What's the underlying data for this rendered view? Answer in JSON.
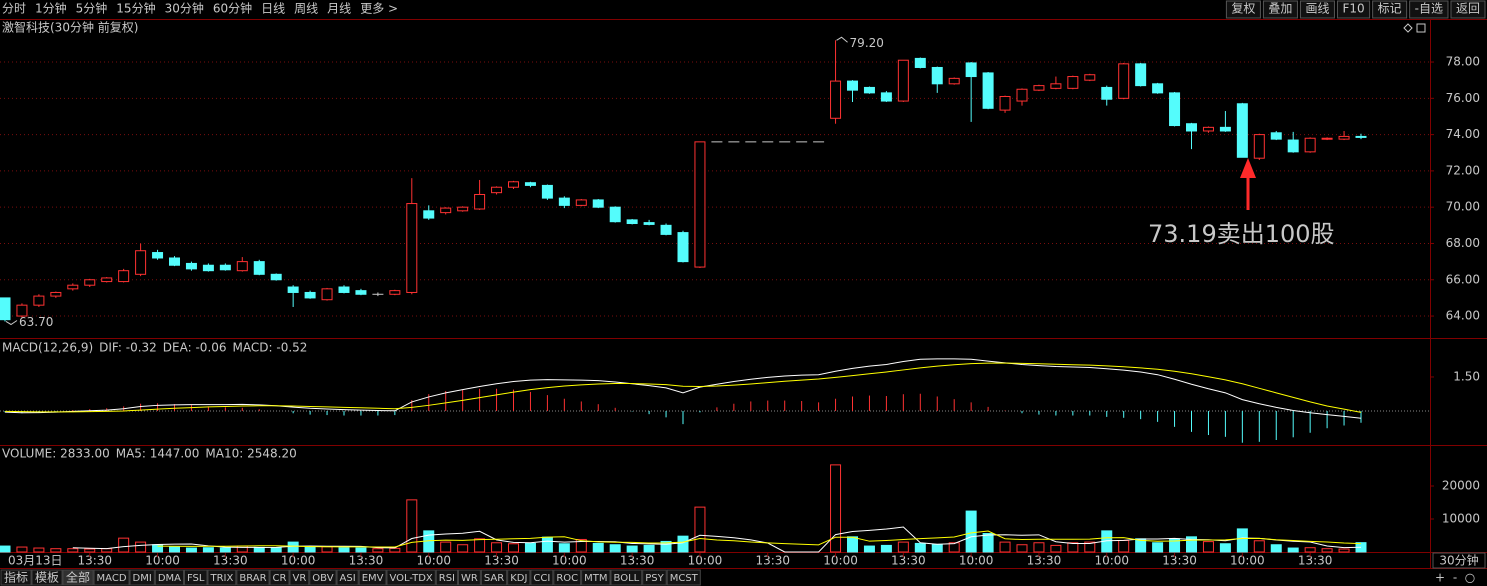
{
  "toolbar": {
    "periods": [
      {
        "label": "分时"
      },
      {
        "label": "1分钟"
      },
      {
        "label": "5分钟"
      },
      {
        "label": "15分钟"
      },
      {
        "label": "30分钟",
        "active": true
      },
      {
        "label": "60分钟"
      },
      {
        "label": "日线"
      },
      {
        "label": "周线"
      },
      {
        "label": "月线"
      },
      {
        "label": "更多 >"
      }
    ],
    "buttons": [
      "复权",
      "叠加",
      "画线",
      "F10",
      "标记",
      "-自选",
      "返回"
    ]
  },
  "chart_data": [
    {
      "type": "candlestick",
      "title": "激智科技(30分钟 前复权)",
      "categories": [
        "03月13日",
        null,
        null,
        null,
        null,
        "13:30",
        null,
        null,
        null,
        "10:00",
        null,
        null,
        null,
        "13:30",
        null,
        null,
        null,
        "10:00",
        null,
        null,
        null,
        "13:30",
        null,
        null,
        null,
        "10:00",
        null,
        null,
        null,
        "13:30",
        null,
        null,
        null,
        "10:00",
        null,
        null,
        null,
        "13:30",
        null,
        null,
        null,
        "10:00",
        null,
        null,
        null,
        "13:30",
        null,
        null,
        null,
        "10:00",
        null,
        null,
        null,
        "13:30",
        null,
        null,
        null,
        "10:00",
        null,
        null,
        null,
        "13:30",
        null,
        null,
        null,
        "10:00",
        null,
        null,
        null,
        "13:30",
        null,
        null,
        null,
        "10:00",
        null,
        null,
        null,
        "13:30",
        null,
        null,
        null
      ],
      "open": [
        65.0,
        64.0,
        64.6,
        65.1,
        65.5,
        65.7,
        65.9,
        65.9,
        66.3,
        67.5,
        67.2,
        66.9,
        66.8,
        66.8,
        66.5,
        67.0,
        66.3,
        65.6,
        65.3,
        64.9,
        65.6,
        65.4,
        65.2,
        65.2,
        65.3,
        69.8,
        69.7,
        69.8,
        69.9,
        70.8,
        71.1,
        71.35,
        71.2,
        70.5,
        70.1,
        70.4,
        70.0,
        69.3,
        69.15,
        69.0,
        68.6,
        66.7,
        73.6,
        73.6,
        73.6,
        73.6,
        73.6,
        73.6,
        73.6,
        74.9,
        76.95,
        76.6,
        76.3,
        75.85,
        78.2,
        77.7,
        76.8,
        77.95,
        77.4,
        75.35,
        75.85,
        76.45,
        76.55,
        76.55,
        77.0,
        76.6,
        76.0,
        77.9,
        76.8,
        76.3,
        74.6,
        74.2,
        74.4,
        75.7,
        72.7,
        74.1,
        73.7,
        73.05,
        73.75,
        73.75,
        73.9
      ],
      "high": [
        65.0,
        64.7,
        65.2,
        65.35,
        65.8,
        66.05,
        66.15,
        66.6,
        68.0,
        67.65,
        67.3,
        67.0,
        66.9,
        66.9,
        67.25,
        67.1,
        66.35,
        65.7,
        65.4,
        65.55,
        65.7,
        65.5,
        65.3,
        65.45,
        71.6,
        70.1,
        70.0,
        70.05,
        71.5,
        71.15,
        71.45,
        71.4,
        71.25,
        70.6,
        70.45,
        70.45,
        70.05,
        69.35,
        69.3,
        69.1,
        68.7,
        73.6,
        73.6,
        73.6,
        73.6,
        73.6,
        73.6,
        73.6,
        73.6,
        79.2,
        77.0,
        76.65,
        76.4,
        78.1,
        78.25,
        77.75,
        77.15,
        78.0,
        77.45,
        76.15,
        76.55,
        76.75,
        77.2,
        77.25,
        77.35,
        76.7,
        77.95,
        77.95,
        76.85,
        76.35,
        74.65,
        74.45,
        75.3,
        75.75,
        74.05,
        74.2,
        74.15,
        73.85,
        73.85,
        74.2,
        74.05
      ],
      "low": [
        63.7,
        63.9,
        64.5,
        65.0,
        65.4,
        65.6,
        65.85,
        65.85,
        66.2,
        67.1,
        66.75,
        66.5,
        66.45,
        66.5,
        66.45,
        66.25,
        65.95,
        64.5,
        64.95,
        64.85,
        65.25,
        65.15,
        65.1,
        65.15,
        65.2,
        69.3,
        69.6,
        69.75,
        69.85,
        70.7,
        71.0,
        71.1,
        70.4,
        69.95,
        70.05,
        69.95,
        69.15,
        69.05,
        69.0,
        68.45,
        66.95,
        66.65,
        73.6,
        73.6,
        73.6,
        73.6,
        73.6,
        73.6,
        73.6,
        74.6,
        75.8,
        76.25,
        75.8,
        75.8,
        77.65,
        76.3,
        76.75,
        74.7,
        75.4,
        75.2,
        75.6,
        76.4,
        76.5,
        76.5,
        76.95,
        75.6,
        75.95,
        76.65,
        76.25,
        74.45,
        73.2,
        74.1,
        74.15,
        72.75,
        72.6,
        73.7,
        73.0,
        73.0,
        73.7,
        73.7,
        73.75
      ],
      "close": [
        63.8,
        64.6,
        65.1,
        65.3,
        65.7,
        66.0,
        66.1,
        66.5,
        67.6,
        67.2,
        66.8,
        66.6,
        66.5,
        66.55,
        67.0,
        66.3,
        66.0,
        65.3,
        65.0,
        65.5,
        65.3,
        65.2,
        65.2,
        65.4,
        70.2,
        69.4,
        69.95,
        70.0,
        70.7,
        71.1,
        71.4,
        71.2,
        70.5,
        70.1,
        70.4,
        70.0,
        69.2,
        69.1,
        69.05,
        68.5,
        67.0,
        73.6,
        73.6,
        73.6,
        73.6,
        73.6,
        73.6,
        73.6,
        73.6,
        76.95,
        76.45,
        76.3,
        75.85,
        78.1,
        77.7,
        76.8,
        77.1,
        77.2,
        75.45,
        76.1,
        76.5,
        76.7,
        76.8,
        77.2,
        77.3,
        75.95,
        77.9,
        76.7,
        76.3,
        74.5,
        74.2,
        74.4,
        74.2,
        72.75,
        74.0,
        73.75,
        73.05,
        73.8,
        73.8,
        73.9,
        73.88
      ],
      "up_color": "#ff3232",
      "down_color": "#54fcfc",
      "flat_color": "#c8c8c8",
      "ylim": [
        62.79,
        79.49
      ],
      "yticks": [
        {
          "value": 64,
          "label": "64.00"
        },
        {
          "value": 66,
          "label": "66.00"
        },
        {
          "value": 68,
          "label": "68.00"
        },
        {
          "value": 70,
          "label": "70.00"
        },
        {
          "value": 72,
          "label": "72.00"
        },
        {
          "value": 74,
          "label": "74.00"
        },
        {
          "value": 76,
          "label": "76.00"
        },
        {
          "value": 78,
          "label": "78.00"
        }
      ],
      "grid": true,
      "annotations": {
        "high_label": "79.20",
        "low_label": "63.70",
        "note": "73.19卖出100股",
        "note_color": "#ffff00",
        "arrow_color": "#ff2a2a"
      }
    },
    {
      "type": "macd",
      "label": "MACD(12,26,9)",
      "series": [
        {
          "name": "DIF: -0.32",
          "color": "#ffffff",
          "values": [
            -0.05,
            -0.08,
            -0.07,
            -0.05,
            -0.02,
            0.01,
            0.04,
            0.1,
            0.2,
            0.25,
            0.27,
            0.28,
            0.28,
            0.28,
            0.29,
            0.27,
            0.23,
            0.17,
            0.12,
            0.09,
            0.06,
            0.04,
            0.02,
            0.01,
            0.4,
            0.62,
            0.8,
            0.94,
            1.08,
            1.2,
            1.3,
            1.36,
            1.38,
            1.37,
            1.36,
            1.34,
            1.28,
            1.2,
            1.12,
            1.02,
            0.8,
            1.05,
            1.18,
            1.3,
            1.4,
            1.48,
            1.54,
            1.58,
            1.6,
            1.75,
            1.88,
            1.98,
            2.05,
            2.18,
            2.28,
            2.3,
            2.3,
            2.28,
            2.2,
            2.12,
            2.05,
            2.0,
            1.96,
            1.94,
            1.92,
            1.86,
            1.8,
            1.72,
            1.6,
            1.4,
            1.18,
            0.98,
            0.8,
            0.5,
            0.32,
            0.16,
            0.02,
            -0.08,
            -0.16,
            -0.24,
            -0.32
          ]
        },
        {
          "name": "DEA: -0.06",
          "color": "#ffff00",
          "values": [
            -0.02,
            -0.03,
            -0.04,
            -0.04,
            -0.04,
            -0.03,
            -0.02,
            0.0,
            0.04,
            0.08,
            0.12,
            0.15,
            0.18,
            0.2,
            0.22,
            0.23,
            0.23,
            0.22,
            0.2,
            0.18,
            0.16,
            0.14,
            0.12,
            0.1,
            0.16,
            0.25,
            0.36,
            0.47,
            0.59,
            0.71,
            0.83,
            0.94,
            1.03,
            1.1,
            1.15,
            1.19,
            1.21,
            1.21,
            1.19,
            1.16,
            1.09,
            1.08,
            1.1,
            1.14,
            1.19,
            1.25,
            1.31,
            1.36,
            1.41,
            1.48,
            1.56,
            1.64,
            1.72,
            1.81,
            1.9,
            1.98,
            2.04,
            2.09,
            2.11,
            2.11,
            2.1,
            2.08,
            2.06,
            2.04,
            2.02,
            1.99,
            1.95,
            1.9,
            1.84,
            1.75,
            1.64,
            1.51,
            1.37,
            1.2,
            1.0,
            0.8,
            0.6,
            0.4,
            0.22,
            0.08,
            -0.06
          ]
        }
      ],
      "histogram": {
        "name": "MACD: -0.52",
        "name_color": "#ff40ff",
        "up_color": "#ff3232",
        "down_color": "#54fcfc",
        "values": [
          -0.06,
          -0.1,
          -0.06,
          -0.02,
          0.04,
          0.08,
          0.12,
          0.2,
          0.32,
          0.34,
          0.3,
          0.26,
          0.2,
          0.16,
          0.14,
          0.08,
          0.0,
          -0.1,
          -0.16,
          -0.18,
          -0.2,
          -0.2,
          -0.2,
          -0.18,
          0.48,
          0.74,
          0.88,
          0.94,
          0.98,
          0.98,
          0.94,
          0.84,
          0.7,
          0.54,
          0.42,
          0.3,
          0.14,
          -0.02,
          -0.14,
          -0.28,
          -0.58,
          -0.06,
          0.16,
          0.32,
          0.42,
          0.46,
          0.46,
          0.44,
          0.38,
          0.54,
          0.64,
          0.68,
          0.66,
          0.74,
          0.76,
          0.64,
          0.52,
          0.38,
          0.18,
          0.02,
          -0.1,
          -0.16,
          -0.2,
          -0.2,
          -0.2,
          -0.26,
          -0.3,
          -0.36,
          -0.48,
          -0.7,
          -0.92,
          -1.06,
          -1.14,
          -1.4,
          -1.36,
          -1.28,
          -1.16,
          -0.96,
          -0.76,
          -0.64,
          -0.52
        ]
      },
      "ylim": [
        -1.5,
        3.13
      ],
      "yticks": [
        {
          "value": 1.5,
          "label": "1.50"
        }
      ]
    },
    {
      "type": "volume",
      "label": "VOLUME: 2833.00",
      "label_color": "#c8c8c8",
      "values": [
        1800,
        1500,
        1200,
        1000,
        1000,
        900,
        1000,
        4200,
        3000,
        2200,
        1500,
        1200,
        1300,
        1200,
        1800,
        1400,
        1300,
        3000,
        1500,
        1600,
        1300,
        1200,
        1000,
        1100,
        15800,
        6400,
        3000,
        2200,
        4000,
        2800,
        2500,
        2600,
        4500,
        2500,
        3800,
        2600,
        2200,
        1800,
        2000,
        3200,
        4800,
        13600,
        0,
        0,
        0,
        0,
        0,
        0,
        0,
        26400,
        4600,
        1800,
        2000,
        3000,
        2600,
        2300,
        2800,
        12400,
        5600,
        3000,
        2200,
        2800,
        2000,
        2800,
        3000,
        6400,
        3500,
        4000,
        2800,
        4000,
        4600,
        3149,
        2500,
        7000,
        3400,
        2200,
        1200,
        1300,
        1000,
        900,
        2833
      ],
      "series": [
        {
          "name": "MA5: 1447.00",
          "color": "#ffffff",
          "values": [
            null,
            null,
            null,
            null,
            1300,
            1120,
            1020,
            1620,
            2020,
            2260,
            2380,
            2420,
            1840,
            1480,
            1400,
            1380,
            1400,
            1740,
            1800,
            1760,
            1740,
            1720,
            1320,
            1240,
            4080,
            5100,
            5460,
            5700,
            6280,
            3680,
            2900,
            2820,
            3280,
            2980,
            3180,
            3200,
            3120,
            2580,
            2480,
            2360,
            2800,
            5080,
            4720,
            4320,
            3680,
            2720,
            0,
            0,
            0,
            5280,
            6200,
            6560,
            6960,
            7560,
            2800,
            2340,
            2540,
            4620,
            5140,
            5220,
            5080,
            5200,
            3120,
            2560,
            2560,
            3400,
            3540,
            3940,
            3940,
            4140,
            3780,
            3710,
            3410,
            4250,
            4130,
            3650,
            3260,
            3020,
            1820,
            1320,
            1447
          ]
        },
        {
          "name": "MA10: 2548.20",
          "color": "#ffff00",
          "values": [
            null,
            null,
            null,
            null,
            null,
            null,
            null,
            null,
            null,
            1780,
            1750,
            1720,
            1730,
            1750,
            1830,
            1880,
            1910,
            1790,
            1640,
            1580,
            1560,
            1560,
            1530,
            1520,
            2920,
            3420,
            3590,
            3510,
            3760,
            3880,
            4000,
            4140,
            4490,
            4630,
            3430,
            3050,
            2970,
            2930,
            2730,
            2770,
            3000,
            4100,
            3650,
            3400,
            3020,
            2760,
            2540,
            2360,
            2160,
            4480,
            4460,
            3280,
            3480,
            3780,
            4040,
            4270,
            4550,
            5790,
            6350,
            4010,
            3770,
            3870,
            3870,
            3850,
            3890,
            4300,
            4370,
            3530,
            3250,
            3350,
            3590,
            3625,
            3675,
            4095,
            4135,
            3715,
            3485,
            3215,
            3035,
            2725,
            2548.2
          ]
        }
      ],
      "ylim": [
        0,
        32121
      ],
      "yticks": [
        10000,
        20000
      ]
    }
  ],
  "bottom_bar": {
    "tabs": [
      {
        "label": "指标"
      },
      {
        "label": "模板"
      },
      {
        "label": "全部",
        "active": true
      },
      {
        "label": "MACD"
      },
      {
        "label": "DMI"
      },
      {
        "label": "DMA"
      },
      {
        "label": "FSL"
      },
      {
        "label": "TRIX"
      },
      {
        "label": "BRAR"
      },
      {
        "label": "CR"
      },
      {
        "label": "VR"
      },
      {
        "label": "OBV"
      },
      {
        "label": "ASI"
      },
      {
        "label": "EMV"
      },
      {
        "label": "VOL-TDX"
      },
      {
        "label": "RSI"
      },
      {
        "label": "WR"
      },
      {
        "label": "SAR"
      },
      {
        "label": "KDJ"
      },
      {
        "label": "CCI"
      },
      {
        "label": "ROC"
      },
      {
        "label": "MTM"
      },
      {
        "label": "BOLL"
      },
      {
        "label": "PSY"
      },
      {
        "label": "MCST"
      }
    ],
    "period": "30分钟",
    "controls": [
      "+",
      "-",
      "○"
    ]
  }
}
